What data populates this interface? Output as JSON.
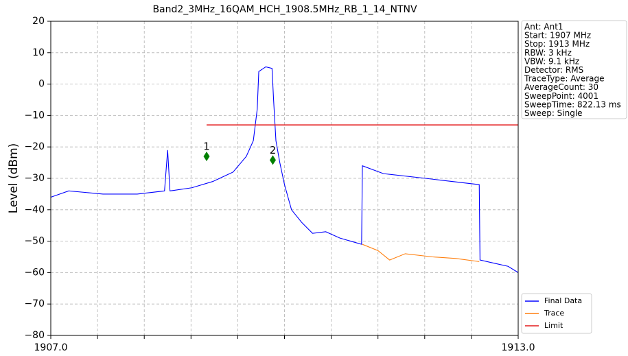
{
  "chart_data": {
    "type": "line",
    "title": "Band2_3MHz_16QAM_HCH_1908.5MHz_RB_1_14_NTNV",
    "ylabel": "Level (dBm)",
    "xlim": [
      1907.0,
      1913.0
    ],
    "xticks": [
      {
        "value": 1907.0,
        "label": "1907.0"
      },
      {
        "value": 1913.0,
        "label": "1913.0"
      }
    ],
    "xgrid_ticks": [
      1907.6,
      1908.2,
      1908.8,
      1909.4,
      1910.0,
      1910.6,
      1911.2,
      1911.8,
      1912.4
    ],
    "ylim": [
      -80,
      20
    ],
    "yticks": [
      {
        "value": -80,
        "label": "−80"
      },
      {
        "value": -70,
        "label": "−70"
      },
      {
        "value": -60,
        "label": "−60"
      },
      {
        "value": -50,
        "label": "−50"
      },
      {
        "value": -40,
        "label": "−40"
      },
      {
        "value": -30,
        "label": "−30"
      },
      {
        "value": -20,
        "label": "−20"
      },
      {
        "value": -10,
        "label": "−10"
      },
      0,
      10,
      20
    ],
    "grid": true,
    "legend": "lower right",
    "series": [
      {
        "name": "Final Data",
        "color": "#0000ff",
        "x": [
          1907.0,
          1907.23,
          1907.67,
          1908.11,
          1908.46,
          1908.5,
          1908.53,
          1908.81,
          1909.08,
          1909.34,
          1909.51,
          1909.6,
          1909.65,
          1909.67,
          1909.76,
          1909.84,
          1909.86,
          1909.89,
          1909.94,
          1910.0,
          1910.09,
          1910.22,
          1910.36,
          1910.53,
          1910.71,
          1910.99,
          1911.0,
          1911.27,
          1911.81,
          1912.5,
          1912.51,
          1912.69,
          1912.87,
          1913.0
        ],
        "values": [
          -36,
          -34,
          -35,
          -35,
          -34,
          -21,
          -34,
          -33,
          -31,
          -28,
          -23,
          -18,
          -8,
          4,
          5.5,
          5,
          -5,
          -18,
          -25,
          -32,
          -40,
          -44,
          -47.5,
          -47,
          -49,
          -51,
          -26,
          -28.5,
          -30,
          -32,
          -56,
          -57,
          -58,
          -60
        ]
      },
      {
        "name": "Trace",
        "color": "#ff7f0e",
        "x": [
          1911.0,
          1911.2,
          1911.35,
          1911.55,
          1911.9,
          1912.2,
          1912.5
        ],
        "values": [
          -51,
          -53,
          -56,
          -54,
          -55,
          -55.5,
          -56.5
        ]
      },
      {
        "name": "Limit",
        "color": "#e31a1c",
        "x": [
          1909.0,
          1913.0
        ],
        "values": [
          -13,
          -13
        ]
      }
    ],
    "markers": [
      {
        "label": "1",
        "x": 1909.0,
        "y": -23,
        "color": "#008000"
      },
      {
        "label": "2",
        "x": 1909.85,
        "y": -24.2,
        "color": "#008000"
      }
    ],
    "info": [
      "Ant: Ant1",
      "Start: 1907 MHz",
      "Stop: 1913 MHz",
      "RBW: 3 kHz",
      "VBW: 9.1 kHz",
      "Detector: RMS",
      "TraceType: Average",
      "AverageCount: 30",
      "SweepPoint: 4001",
      "SweepTime: 822.13 ms",
      "Sweep: Single"
    ]
  }
}
